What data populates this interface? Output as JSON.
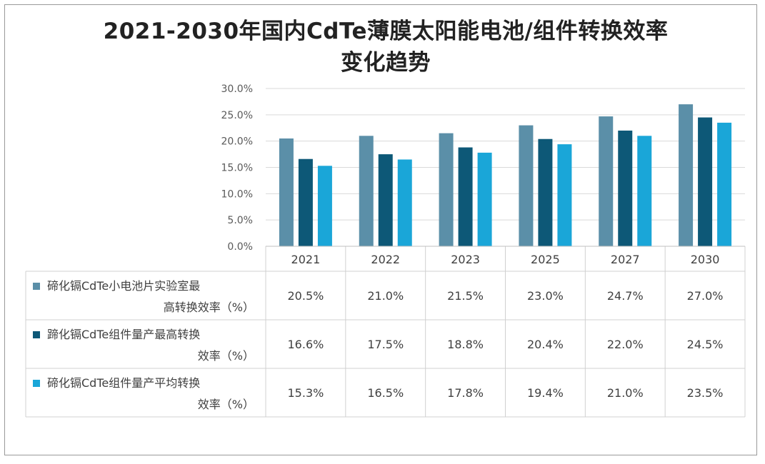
{
  "chart_data": {
    "type": "bar",
    "title": "2021-2030年国内CdTe薄膜太阳能电池/组件转换效率变化趋势",
    "title_lines": [
      "2021-2030年国内CdTe薄膜太阳能电池/组件转换效率",
      "变化趋势"
    ],
    "categories": [
      "2021",
      "2022",
      "2023",
      "2025",
      "2027",
      "2030"
    ],
    "y_ticks": [
      "0.0%",
      "5.0%",
      "10.0%",
      "15.0%",
      "20.0%",
      "25.0%",
      "30.0%"
    ],
    "ylim": [
      0,
      30
    ],
    "grid": true,
    "series": [
      {
        "name": "碲化镉CdTe小电池片实验室最高转换效率（%）",
        "legend_lines": [
          "碲化镉CdTe小电池片实验室最",
          "高转换效率（%）"
        ],
        "color": "#5b8fa8",
        "values": [
          20.5,
          21.0,
          21.5,
          23.0,
          24.7,
          27.0
        ],
        "labels": [
          "20.5%",
          "21.0%",
          "21.5%",
          "23.0%",
          "24.7%",
          "27.0%"
        ]
      },
      {
        "name": "蹄化镉CdTe组件量产最高转换效率（%）",
        "legend_lines": [
          "蹄化镉CdTe组件量产最高转换",
          "效率（%）"
        ],
        "color": "#0d5877",
        "values": [
          16.6,
          17.5,
          18.8,
          20.4,
          22.0,
          24.5
        ],
        "labels": [
          "16.6%",
          "17.5%",
          "18.8%",
          "20.4%",
          "22.0%",
          "24.5%"
        ]
      },
      {
        "name": "碲化镉CdTe组件量产平均转换效率（%）",
        "legend_lines": [
          "碲化镉CdTe组件量产平均转换",
          "效率（%）"
        ],
        "color": "#1aa6d8",
        "values": [
          15.3,
          16.5,
          17.8,
          19.4,
          21.0,
          23.5
        ],
        "labels": [
          "15.3%",
          "16.5%",
          "17.8%",
          "19.4%",
          "21.0%",
          "23.5%"
        ]
      }
    ]
  }
}
